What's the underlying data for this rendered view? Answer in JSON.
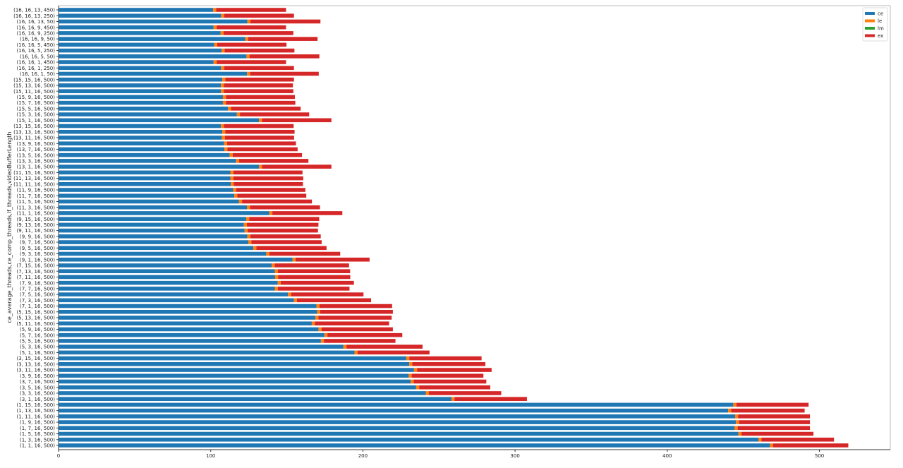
{
  "chart_data": {
    "type": "bar",
    "orientation": "horizontal",
    "stacked": true,
    "title": "",
    "xlabel": "",
    "ylabel": "ce_average_threads,ce_comp_threads,lf_threads,videoBufferLength",
    "xlim": [
      0,
      545
    ],
    "xticks": [
      0,
      100,
      200,
      300,
      400,
      500
    ],
    "grid": false,
    "legend_position": "top-right",
    "categories": [
      "(16, 16, 13, 450)",
      "(16, 16, 13, 250)",
      "(16, 16, 13, 50)",
      "(16, 16, 9, 450)",
      "(16, 16, 9, 250)",
      "(16, 16, 9, 50)",
      "(16, 16, 5, 450)",
      "(16, 16, 5, 250)",
      "(16, 16, 5, 50)",
      "(16, 16, 1, 450)",
      "(16, 16, 1, 250)",
      "(16, 16, 1, 50)",
      "(15, 15, 16, 500)",
      "(15, 13, 16, 500)",
      "(15, 11, 16, 500)",
      "(15, 9, 16, 500)",
      "(15, 7, 16, 500)",
      "(15, 5, 16, 500)",
      "(15, 3, 16, 500)",
      "(15, 1, 16, 500)",
      "(13, 15, 16, 500)",
      "(13, 13, 16, 500)",
      "(13, 11, 16, 500)",
      "(13, 9, 16, 500)",
      "(13, 7, 16, 500)",
      "(13, 5, 16, 500)",
      "(13, 3, 16, 500)",
      "(13, 1, 16, 500)",
      "(11, 15, 16, 500)",
      "(11, 13, 16, 500)",
      "(11, 11, 16, 500)",
      "(11, 9, 16, 500)",
      "(11, 7, 16, 500)",
      "(11, 5, 16, 500)",
      "(11, 3, 16, 500)",
      "(11, 1, 16, 500)",
      "(9, 15, 16, 500)",
      "(9, 13, 16, 500)",
      "(9, 11, 16, 500)",
      "(9, 9, 16, 500)",
      "(9, 7, 16, 500)",
      "(9, 5, 16, 500)",
      "(9, 3, 16, 500)",
      "(9, 1, 16, 500)",
      "(7, 15, 16, 500)",
      "(7, 13, 16, 500)",
      "(7, 11, 16, 500)",
      "(7, 9, 16, 500)",
      "(7, 7, 16, 500)",
      "(7, 5, 16, 500)",
      "(7, 3, 16, 500)",
      "(7, 1, 16, 500)",
      "(5, 15, 16, 500)",
      "(5, 13, 16, 500)",
      "(5, 11, 16, 500)",
      "(5, 9, 16, 500)",
      "(5, 7, 16, 500)",
      "(5, 5, 16, 500)",
      "(5, 3, 16, 500)",
      "(5, 1, 16, 500)",
      "(3, 15, 16, 500)",
      "(3, 13, 16, 500)",
      "(3, 11, 16, 500)",
      "(3, 9, 16, 500)",
      "(3, 7, 16, 500)",
      "(3, 5, 16, 500)",
      "(3, 3, 16, 500)",
      "(3, 1, 16, 500)",
      "(1, 15, 16, 500)",
      "(1, 13, 16, 500)",
      "(1, 11, 16, 500)",
      "(1, 9, 16, 500)",
      "(1, 7, 16, 500)",
      "(1, 5, 16, 500)",
      "(1, 3, 16, 500)",
      "(1, 1, 16, 500)"
    ],
    "series": [
      {
        "name": "ce",
        "color": "#1f77b4",
        "values": [
          101.6,
          106.8,
          124.1,
          101.9,
          106.5,
          122.6,
          102.3,
          107.1,
          123.5,
          101.9,
          106.8,
          123.9,
          107.6,
          106.7,
          106.7,
          108.0,
          108.0,
          111.3,
          117.2,
          131.7,
          106.7,
          107.6,
          107.3,
          108.8,
          109.0,
          112.4,
          116.7,
          131.7,
          112.9,
          112.9,
          113.2,
          114.7,
          115.5,
          118.6,
          123.8,
          138.5,
          123.3,
          121.8,
          122.3,
          124.0,
          124.7,
          128.0,
          136.5,
          153.8,
          140.0,
          142.1,
          142.3,
          144.0,
          142.1,
          150.8,
          154.6,
          169.5,
          169.9,
          168.8,
          166.4,
          170.8,
          174.7,
          172.4,
          187.2,
          194.5,
          228.5,
          230.5,
          233.6,
          230.1,
          231.4,
          235.0,
          241.3,
          258.2,
          443.4,
          440.0,
          444.6,
          445.2,
          444.3,
          446.8,
          459.9,
          467.5
        ]
      },
      {
        "name": "le",
        "color": "#ff7f0e",
        "values": [
          2,
          2,
          2,
          2,
          2,
          2,
          2,
          2,
          2,
          2,
          2,
          2,
          2,
          2,
          2,
          2,
          2,
          2,
          2,
          2,
          2,
          2,
          2,
          2,
          2,
          2,
          2,
          2,
          2,
          2,
          2,
          2,
          2,
          2,
          2,
          2,
          2,
          2,
          2,
          2,
          2,
          2,
          2,
          2,
          2,
          2,
          2,
          2,
          2,
          2,
          2,
          2,
          2,
          2,
          2,
          2,
          2,
          2,
          2,
          2,
          2,
          2,
          2,
          2,
          2,
          2,
          2,
          2,
          2,
          2,
          2,
          2,
          2,
          2,
          2,
          2
        ]
      },
      {
        "name": "lm",
        "color": "#2ca02c",
        "values": [
          0,
          0,
          0,
          0,
          0,
          0,
          0,
          0,
          0,
          0,
          0,
          0,
          0,
          0,
          0,
          0,
          0,
          0,
          0,
          0,
          0,
          0,
          0,
          0,
          0,
          0,
          0,
          0,
          0,
          0,
          0,
          0,
          0,
          0,
          0,
          0,
          0,
          0,
          0,
          0,
          0,
          0,
          0,
          0,
          0,
          0,
          0,
          0,
          0,
          0,
          0,
          0,
          0,
          0,
          0,
          0,
          0,
          0,
          0,
          0,
          0,
          0,
          0,
          0,
          0,
          0,
          0,
          0,
          0,
          0,
          0,
          0,
          0,
          0,
          0,
          0
        ]
      },
      {
        "name": "ex",
        "color": "#d62728",
        "values": [
          45.9,
          45.9,
          46.0,
          45.6,
          45.8,
          45.6,
          45.5,
          45.9,
          45.9,
          45.6,
          45.9,
          45.1,
          45.1,
          45.3,
          45.6,
          45.3,
          45.6,
          45.8,
          45.5,
          45.6,
          45.8,
          45.5,
          45.5,
          45.2,
          46.1,
          45.6,
          45.5,
          45.6,
          45.4,
          45.9,
          45.4,
          45.5,
          45.3,
          45.9,
          46.0,
          46.0,
          46.0,
          47.0,
          46.2,
          46.3,
          46.2,
          46.1,
          46.6,
          48.6,
          48.9,
          47.5,
          47.4,
          48.1,
          47.1,
          47.6,
          48.8,
          47.7,
          47.8,
          48.1,
          48.8,
          46.9,
          49.2,
          47.0,
          50.0,
          47.3,
          47.5,
          48.0,
          49.0,
          47.1,
          47.7,
          46.7,
          47.6,
          47.6,
          47.5,
          48.3,
          47.2,
          46.6,
          47.5,
          47.3,
          47.7,
          49.5
        ]
      }
    ]
  }
}
